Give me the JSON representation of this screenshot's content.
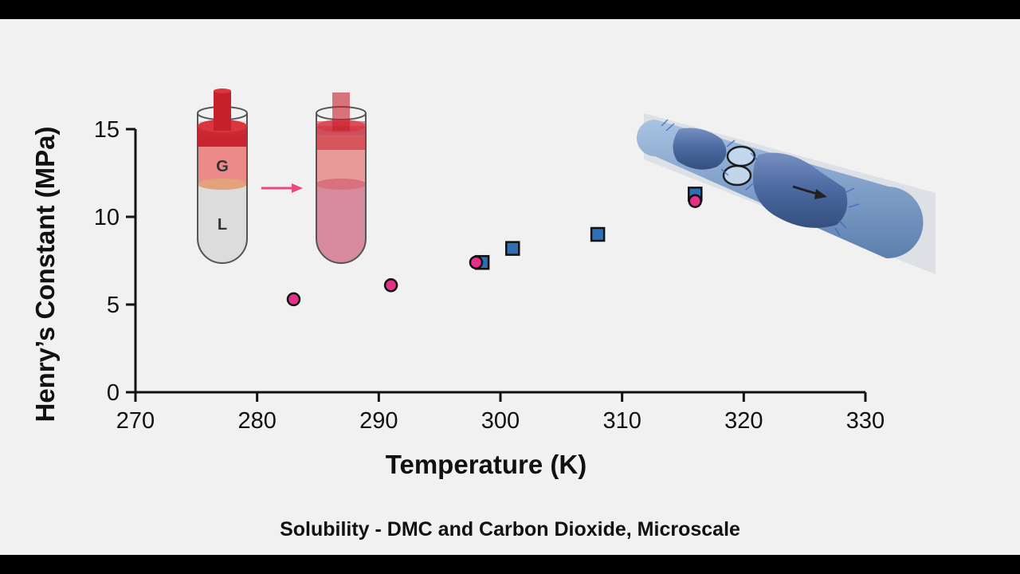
{
  "caption": "Solubility - DMC and Carbon Dioxide, Microscale",
  "colors": {
    "circle_series": "#e62f87",
    "square_series": "#2f6fb5",
    "arrow": "#e84a7c",
    "gas_phase": "#e8777a",
    "liquid_phase": "#d9d9d9",
    "mixed_phase": "#d98a99",
    "piston": "#c7202c"
  },
  "inset_vials": {
    "gas_label": "G",
    "liquid_label": "L"
  },
  "chart_data": {
    "type": "scatter",
    "title": "",
    "xlabel": "Temperature (K)",
    "ylabel": "Henry’s Constant (MPa)",
    "xlim": [
      270,
      330
    ],
    "ylim": [
      0,
      15
    ],
    "x_ticks": [
      270,
      280,
      290,
      300,
      310,
      320,
      330
    ],
    "y_ticks": [
      0,
      5,
      10,
      15
    ],
    "grid": false,
    "legend": "none",
    "series": [
      {
        "marker": "circle",
        "color": "#e62f87",
        "points": [
          [
            283,
            5.3
          ],
          [
            291,
            6.1
          ],
          [
            298,
            7.4
          ],
          [
            316,
            10.9
          ]
        ]
      },
      {
        "marker": "square",
        "color": "#2f6fb5",
        "points": [
          [
            298.5,
            7.4
          ],
          [
            301,
            8.2
          ],
          [
            308,
            9.0
          ],
          [
            316,
            11.3
          ]
        ]
      }
    ]
  }
}
